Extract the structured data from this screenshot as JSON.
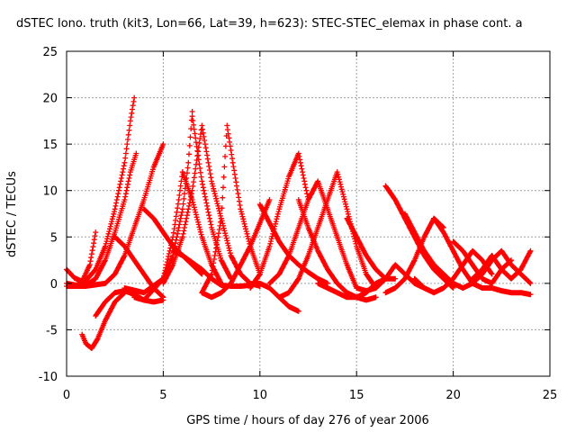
{
  "chart_data": {
    "type": "scatter",
    "title": "dSTEC Iono. truth (kit3, Lon=66, Lat=39, h=623): STEC-STEC_elemax in phase cont. a",
    "xlabel": "GPS time / hours of day 276 of year 2006",
    "ylabel": "dSTEC  / TECUs",
    "xlim": [
      0,
      25
    ],
    "ylim": [
      -10,
      25
    ],
    "x_ticks": [
      "0",
      "5",
      "10",
      "15",
      "20",
      "25"
    ],
    "y_ticks": [
      "-10",
      "-5",
      "0",
      "5",
      "10",
      "15",
      "20",
      "25"
    ],
    "grid": true,
    "marker": "+",
    "color": "#ff0000",
    "series": [
      {
        "x": [
          0.0,
          0.4,
          0.8,
          1.2,
          1.5
        ],
        "y": [
          1.5,
          0.6,
          0.2,
          2.0,
          5.5
        ]
      },
      {
        "x": [
          0.0,
          0.5,
          1.0,
          1.5,
          2.0,
          2.5,
          3.0,
          3.3,
          3.5
        ],
        "y": [
          0.0,
          -0.2,
          0.3,
          1.5,
          4.0,
          8.0,
          13.0,
          17.5,
          20.0
        ]
      },
      {
        "x": [
          0.8,
          1.0,
          1.3,
          1.6,
          2.0,
          2.5,
          3.0
        ],
        "y": [
          -5.5,
          -6.5,
          -7.0,
          -6.0,
          -4.0,
          -2.0,
          -1.0
        ]
      },
      {
        "x": [
          1.5,
          2.0,
          2.5,
          3.0,
          3.5,
          4.0,
          4.5,
          5.0
        ],
        "y": [
          -3.5,
          -2.0,
          -1.0,
          -0.8,
          -1.2,
          -1.8,
          -2.0,
          -1.8
        ]
      },
      {
        "x": [
          2.5,
          3.0,
          3.5,
          4.0,
          4.5,
          5.0
        ],
        "y": [
          5.0,
          4.0,
          2.5,
          1.0,
          -0.5,
          -1.5
        ]
      },
      {
        "x": [
          1.0,
          1.5,
          2.0,
          2.5,
          3.0,
          3.3,
          3.6
        ],
        "y": [
          -0.2,
          0.5,
          2.5,
          5.5,
          9.0,
          12.0,
          14.0
        ]
      },
      {
        "x": [
          0.0,
          1.0,
          2.0,
          2.5,
          3.0,
          3.5,
          4.0,
          4.5,
          5.0
        ],
        "y": [
          -0.3,
          -0.3,
          0.0,
          1.0,
          3.0,
          6.0,
          9.0,
          12.5,
          15.0
        ]
      },
      {
        "x": [
          4.0,
          4.5,
          5.0,
          5.5,
          6.0,
          6.5,
          7.0
        ],
        "y": [
          8.0,
          7.0,
          5.5,
          4.0,
          3.0,
          2.0,
          1.0
        ]
      },
      {
        "x": [
          3.0,
          4.0,
          5.0,
          5.5,
          6.0,
          6.3,
          6.5
        ],
        "y": [
          -0.5,
          -1.0,
          0.5,
          3.0,
          8.0,
          13.0,
          18.5
        ]
      },
      {
        "x": [
          6.5,
          7.0,
          7.5,
          8.0,
          8.5
        ],
        "y": [
          18.0,
          11.0,
          6.0,
          2.5,
          0.5
        ]
      },
      {
        "x": [
          5.0,
          5.5,
          6.0,
          6.5,
          7.0,
          7.5,
          8.0,
          8.5,
          9.0,
          9.5,
          10.0
        ],
        "y": [
          0.0,
          2.0,
          5.0,
          10.0,
          17.0,
          11.0,
          7.0,
          3.0,
          1.0,
          0.0,
          -0.3
        ]
      },
      {
        "x": [
          3.5,
          4.0,
          5.0,
          5.5,
          5.8,
          6.0
        ],
        "y": [
          -1.5,
          -1.8,
          0.5,
          5.0,
          9.0,
          12.0
        ]
      },
      {
        "x": [
          6.0,
          6.5,
          7.0,
          7.5,
          8.0
        ],
        "y": [
          12.0,
          9.0,
          5.0,
          2.0,
          0.0
        ]
      },
      {
        "x": [
          7.0,
          7.5,
          8.0,
          8.3,
          8.6,
          9.0,
          9.5,
          10.0
        ],
        "y": [
          -1.0,
          1.0,
          7.0,
          17.0,
          13.0,
          8.0,
          4.0,
          1.0
        ]
      },
      {
        "x": [
          5.5,
          6.0,
          7.0,
          7.5,
          8.0,
          8.5,
          9.0,
          9.5,
          10.0,
          10.5,
          11.0,
          11.5,
          12.0
        ],
        "y": [
          3.5,
          3.0,
          1.5,
          0.5,
          -0.2,
          -0.3,
          -0.3,
          -0.2,
          0.0,
          -0.5,
          -1.5,
          -2.5,
          -3.0
        ]
      },
      {
        "x": [
          7.0,
          7.5,
          8.0,
          8.5,
          9.0,
          9.5,
          10.0,
          10.5
        ],
        "y": [
          -1.0,
          -1.5,
          -1.0,
          0.0,
          2.0,
          4.0,
          6.5,
          9.0
        ]
      },
      {
        "x": [
          9.5,
          10.0,
          10.5,
          11.0,
          11.5,
          12.0,
          12.5
        ],
        "y": [
          -0.5,
          1.0,
          4.0,
          8.0,
          11.5,
          14.0,
          9.0
        ]
      },
      {
        "x": [
          10.0,
          10.5,
          11.0,
          11.5,
          12.0,
          12.5,
          13.0,
          13.5
        ],
        "y": [
          8.5,
          6.5,
          4.5,
          3.0,
          2.0,
          1.2,
          0.5,
          0.0
        ]
      },
      {
        "x": [
          10.5,
          11.0,
          11.5,
          12.0,
          12.5,
          13.0,
          13.5,
          14.0,
          14.5,
          15.0
        ],
        "y": [
          0.0,
          1.0,
          3.0,
          6.0,
          9.0,
          11.0,
          8.0,
          5.0,
          2.0,
          -0.5
        ]
      },
      {
        "x": [
          11.0,
          11.5,
          12.0,
          12.5,
          13.0,
          13.5,
          14.0,
          14.5,
          15.0,
          15.5,
          16.0
        ],
        "y": [
          -1.5,
          -1.0,
          0.5,
          3.0,
          6.0,
          9.0,
          12.0,
          8.0,
          4.0,
          1.0,
          -0.5
        ]
      },
      {
        "x": [
          12.0,
          12.5,
          13.0,
          13.5,
          14.0,
          14.5,
          15.0,
          15.5,
          16.0
        ],
        "y": [
          9.0,
          6.0,
          3.5,
          1.5,
          0.0,
          -1.0,
          -1.5,
          -1.8,
          -1.5
        ]
      },
      {
        "x": [
          13.0,
          13.5,
          14.0,
          14.5,
          15.0,
          15.5,
          16.0,
          16.5,
          17.0
        ],
        "y": [
          0.0,
          -0.5,
          -1.0,
          -1.5,
          -1.5,
          -1.0,
          0.0,
          0.5,
          0.5
        ]
      },
      {
        "x": [
          14.5,
          15.0,
          15.5,
          16.0,
          16.5
        ],
        "y": [
          7.0,
          5.0,
          3.0,
          1.5,
          0.5
        ]
      },
      {
        "x": [
          15.0,
          15.5,
          16.0,
          16.5,
          17.0,
          17.5,
          18.0,
          18.5
        ],
        "y": [
          -0.5,
          -0.8,
          -0.5,
          0.5,
          2.0,
          1.0,
          0.0,
          -0.5
        ]
      },
      {
        "x": [
          16.5,
          17.0,
          17.5,
          18.0,
          18.5,
          19.0,
          19.5,
          20.0
        ],
        "y": [
          10.5,
          9.0,
          7.0,
          5.0,
          3.0,
          1.5,
          0.5,
          -0.5
        ]
      },
      {
        "x": [
          16.5,
          17.0,
          17.5,
          18.0,
          18.5,
          19.0,
          19.5
        ],
        "y": [
          -1.0,
          -0.5,
          0.5,
          2.5,
          5.0,
          7.0,
          6.0
        ]
      },
      {
        "x": [
          17.5,
          18.0,
          18.5,
          19.0,
          19.5,
          20.0,
          20.5
        ],
        "y": [
          7.5,
          5.5,
          3.5,
          2.0,
          1.0,
          0.0,
          -0.5
        ]
      },
      {
        "x": [
          18.0,
          18.5,
          19.0,
          19.5,
          20.0,
          20.5,
          21.0,
          21.5,
          22.0
        ],
        "y": [
          0.5,
          -0.5,
          -1.0,
          -0.5,
          0.5,
          2.0,
          3.5,
          2.5,
          1.0
        ]
      },
      {
        "x": [
          19.0,
          19.5,
          20.0,
          20.5,
          21.0,
          21.5,
          22.0,
          22.5,
          23.0,
          23.5,
          24.0
        ],
        "y": [
          7.0,
          5.5,
          3.5,
          1.5,
          0.0,
          -0.5,
          -0.5,
          -0.8,
          -1.0,
          -1.0,
          -1.2
        ]
      },
      {
        "x": [
          20.0,
          20.5,
          21.0,
          21.5,
          22.0,
          22.5,
          23.0
        ],
        "y": [
          4.5,
          3.5,
          2.0,
          0.5,
          0.0,
          1.5,
          2.5
        ]
      },
      {
        "x": [
          20.5,
          21.0,
          21.5,
          22.0,
          22.5,
          23.0,
          23.5,
          24.0
        ],
        "y": [
          -0.5,
          0.0,
          1.0,
          2.5,
          3.5,
          2.0,
          1.0,
          0.0
        ]
      },
      {
        "x": [
          21.0,
          21.5,
          22.0,
          22.5,
          23.0,
          23.5,
          24.0
        ],
        "y": [
          0.5,
          1.5,
          3.0,
          1.5,
          0.5,
          1.5,
          3.5
        ]
      }
    ]
  }
}
